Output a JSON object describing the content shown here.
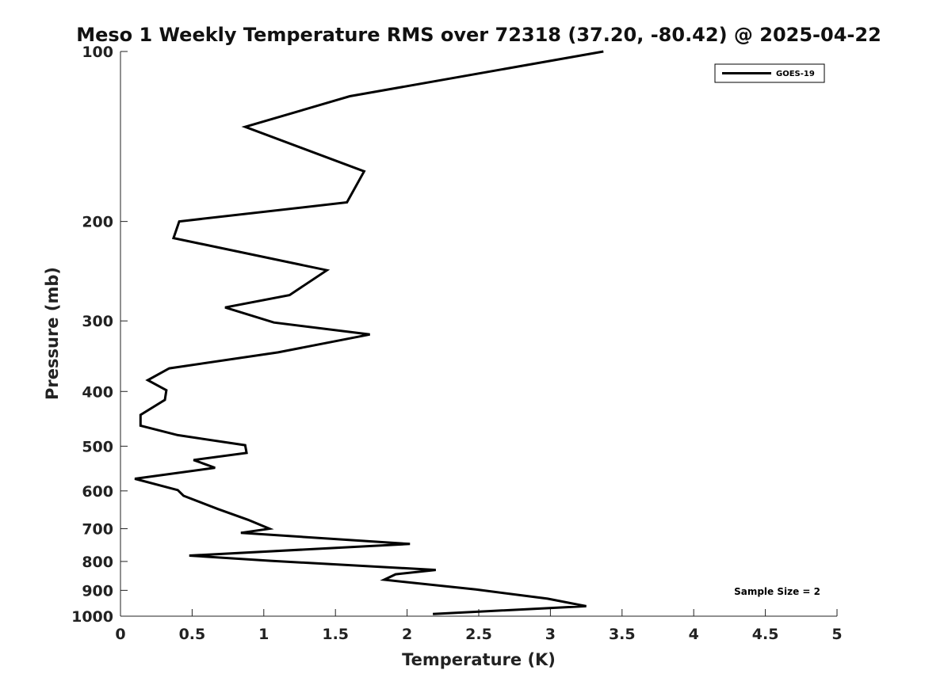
{
  "chart_data": {
    "type": "line",
    "title": "Meso 1 Weekly Temperature RMS over 72318 (37.20, -80.42) @ 2025-04-22",
    "xlabel": "Temperature (K)",
    "ylabel": "Pressure (mb)",
    "xlim": [
      0,
      5
    ],
    "ylim": [
      100,
      1000
    ],
    "yscale": "log",
    "y_reversed": true,
    "xticks": [
      0,
      0.5,
      1,
      1.5,
      2,
      2.5,
      3,
      3.5,
      4,
      4.5,
      5
    ],
    "xtick_labels": [
      "0",
      "0.5",
      "1",
      "1.5",
      "2",
      "2.5",
      "3",
      "3.5",
      "4",
      "4.5",
      "5"
    ],
    "yticks": [
      100,
      200,
      300,
      400,
      500,
      600,
      700,
      800,
      900,
      1000
    ],
    "ytick_labels": [
      "100",
      "200",
      "300",
      "400",
      "500",
      "600",
      "700",
      "800",
      "900",
      "1000"
    ],
    "grid": false,
    "legend_position": "top-right",
    "series": [
      {
        "name": "GOES-19",
        "color": "#000000",
        "x": [
          3.37,
          1.6,
          0.87,
          1.7,
          1.58,
          0.41,
          0.37,
          1.44,
          1.18,
          0.73,
          1.07,
          1.74,
          1.1,
          0.34,
          0.19,
          0.32,
          0.31,
          0.14,
          0.14,
          0.4,
          0.87,
          0.88,
          0.51,
          0.66,
          0.1,
          0.4,
          0.44,
          0.68,
          0.89,
          1.04,
          0.84,
          2.02,
          0.48,
          1.05,
          2.2,
          1.92,
          1.84,
          2.48,
          2.98,
          3.25,
          2.18
        ],
        "y": [
          100,
          120,
          136,
          163,
          185,
          200,
          214,
          244,
          270,
          284,
          302,
          317,
          341,
          364,
          382,
          398,
          414,
          440,
          460,
          478,
          498,
          514,
          529,
          546,
          571,
          598,
          612,
          646,
          675,
          700,
          712,
          745,
          781,
          798,
          828,
          843,
          862,
          897,
          931,
          960,
          991
        ]
      }
    ],
    "annotations": [
      "Sample Size = 2"
    ]
  }
}
